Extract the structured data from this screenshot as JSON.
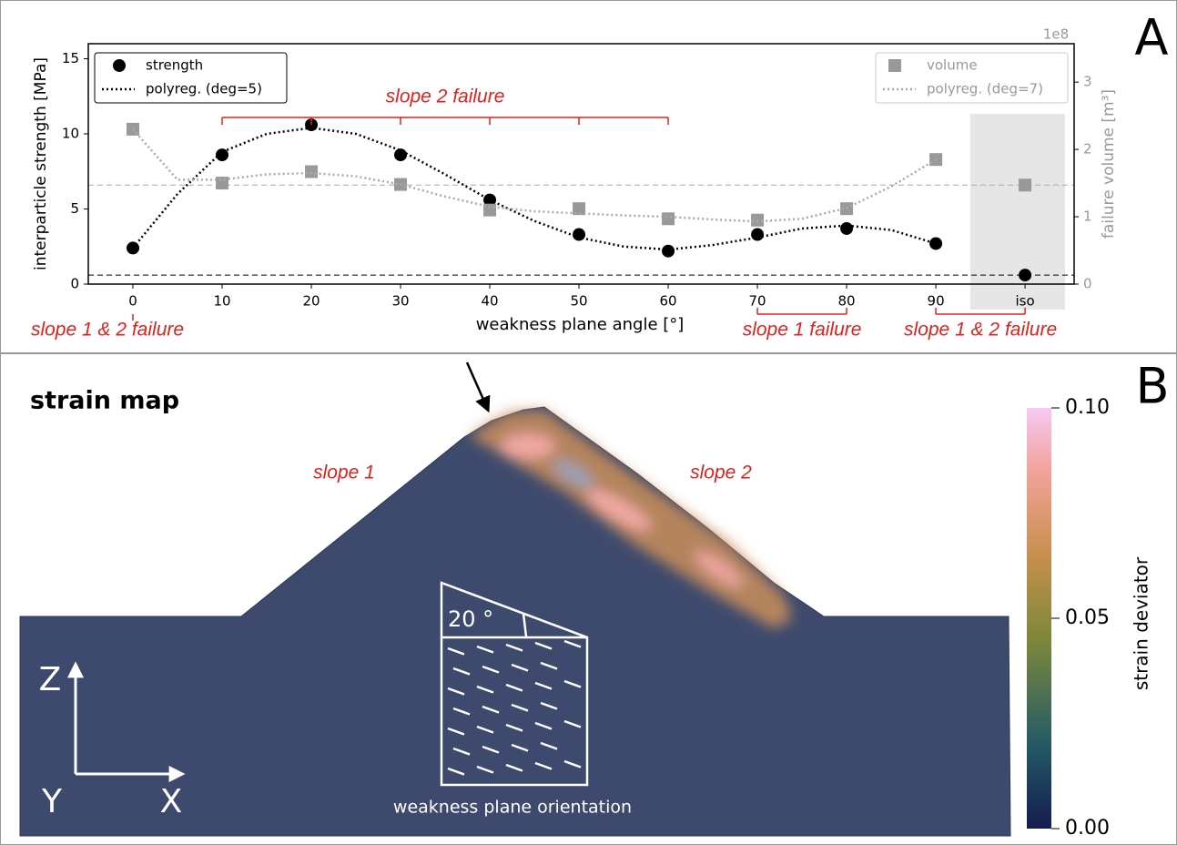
{
  "panels": [
    "A",
    "B"
  ],
  "chart_data": {
    "type": "scatter",
    "x_label": "weakness plane angle [°]",
    "y_label": "interparticle strength [MPa]",
    "y2_label": "failure volume [m³]",
    "y2_multiplier": "1e8",
    "xlim": [
      -5,
      105.5
    ],
    "xticks": [
      0,
      10,
      20,
      30,
      40,
      50,
      60,
      70,
      80,
      90,
      {
        "value": 100,
        "label": "iso"
      }
    ],
    "ylim": [
      0,
      16
    ],
    "yticks": [
      0,
      5,
      10,
      15
    ],
    "y2lim": [
      0,
      3.57
    ],
    "y2ticks": [
      0,
      1,
      2,
      3
    ],
    "legend": [
      "upper left",
      "upper right"
    ],
    "series": [
      {
        "name": "strength",
        "color": "#000000",
        "axis": "y",
        "marker": "circle",
        "x": [
          0,
          10,
          20,
          30,
          40,
          50,
          60,
          70,
          80,
          90,
          100
        ],
        "values": [
          2.4,
          8.6,
          10.6,
          8.6,
          5.6,
          3.3,
          2.2,
          3.3,
          3.7,
          2.7,
          0.6
        ]
      },
      {
        "name": "polyreg. (deg=5)",
        "color": "#000000",
        "axis": "y",
        "style": "dotted",
        "x": [
          0,
          5,
          10,
          15,
          20,
          25,
          30,
          35,
          40,
          45,
          50,
          55,
          60,
          65,
          70,
          75,
          80,
          85,
          90
        ],
        "values": [
          2.4,
          6.0,
          8.8,
          10.0,
          10.4,
          10.0,
          8.9,
          7.3,
          5.6,
          4.2,
          3.1,
          2.5,
          2.3,
          2.6,
          3.1,
          3.7,
          3.9,
          3.6,
          2.7
        ]
      },
      {
        "name": "volume",
        "color": "#999999",
        "axis": "y2",
        "marker": "square",
        "x": [
          0,
          10,
          20,
          30,
          40,
          50,
          60,
          70,
          80,
          90,
          100
        ],
        "values": [
          2.3,
          1.5,
          1.67,
          1.48,
          1.1,
          1.12,
          0.97,
          0.95,
          1.12,
          1.85,
          1.47
        ]
      },
      {
        "name": "polyreg. (deg=7)",
        "color": "#aaaaaa",
        "axis": "y2",
        "style": "dotted",
        "x": [
          0,
          5,
          10,
          15,
          20,
          25,
          30,
          35,
          40,
          45,
          50,
          55,
          60,
          65,
          70,
          75,
          80,
          85,
          90
        ],
        "values": [
          2.3,
          1.55,
          1.55,
          1.63,
          1.65,
          1.6,
          1.48,
          1.3,
          1.15,
          1.08,
          1.05,
          1.02,
          1.0,
          0.96,
          0.93,
          0.97,
          1.13,
          1.45,
          1.85
        ]
      }
    ],
    "annotations": [
      {
        "text": "slope 2 failure",
        "position": "top",
        "x": [
          10,
          20,
          30,
          40,
          50,
          60
        ]
      },
      {
        "text": "slope 1 & 2 failure",
        "position": "bottom",
        "x": [
          0
        ]
      },
      {
        "text": "slope 1 failure",
        "position": "bottom",
        "x": [
          70,
          80
        ]
      },
      {
        "text": "slope 1 & 2 failure",
        "position": "bottom",
        "x": [
          90,
          100
        ]
      }
    ]
  },
  "strain_map": {
    "title": "strain map",
    "slope_labels": [
      "slope 1",
      "slope 2"
    ],
    "angle_label": "20 °",
    "inset_caption": "weakness plane orientation",
    "axes": [
      "Z",
      "Y",
      "X"
    ],
    "colorbar": {
      "label": "strain deviator",
      "lim": [
        0,
        0.1
      ],
      "ticks": [
        {
          "value": 0,
          "label": "0.00"
        },
        {
          "value": 0.05,
          "label": "0.05"
        },
        {
          "value": 0.1,
          "label": "0.10"
        }
      ]
    }
  }
}
